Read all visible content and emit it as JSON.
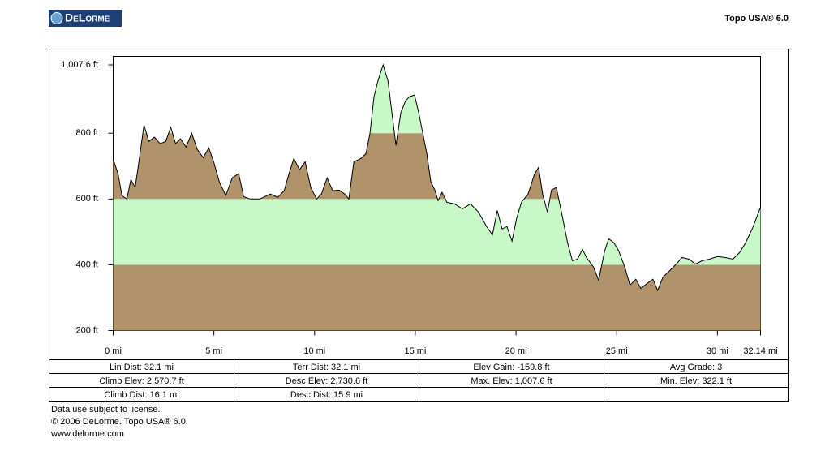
{
  "logo": "DeLorme",
  "app_title": "Topo USA® 6.0",
  "chart_data": {
    "type": "elevation_area",
    "x": [
      0,
      0.24,
      0.44,
      0.68,
      0.88,
      1.09,
      1.25,
      1.53,
      1.77,
      2.05,
      2.33,
      2.61,
      2.86,
      3.1,
      3.34,
      3.62,
      3.9,
      4.18,
      4.47,
      4.75,
      4.99,
      5.27,
      5.59,
      5.91,
      6.23,
      6.48,
      6.8,
      7.28,
      7.8,
      8.17,
      8.49,
      8.73,
      8.97,
      9.25,
      9.53,
      9.81,
      10.1,
      10.34,
      10.62,
      10.9,
      11.22,
      11.5,
      11.7,
      11.95,
      12.3,
      12.55,
      12.75,
      12.95,
      13.15,
      13.4,
      13.64,
      13.84,
      14.04,
      14.28,
      14.52,
      14.72,
      14.96,
      15.17,
      15.37,
      15.57,
      15.77,
      15.97,
      16.13,
      16.33,
      16.57,
      16.94,
      17.34,
      17.74,
      18.14,
      18.54,
      18.83,
      19.07,
      19.31,
      19.55,
      19.8,
      20.03,
      20.27,
      20.6,
      20.92,
      21.12,
      21.32,
      21.56,
      21.76,
      22.0,
      22.28,
      22.56,
      22.8,
      23.05,
      23.3,
      23.5,
      23.85,
      24.1,
      24.4,
      24.6,
      24.86,
      25.1,
      25.4,
      25.66,
      25.95,
      26.2,
      26.5,
      26.8,
      27.03,
      27.3,
      27.6,
      28.0,
      28.24,
      28.6,
      28.9,
      29.24,
      29.6,
      30.0,
      30.4,
      30.77,
      31.1,
      31.4,
      31.74,
      32.14
    ],
    "values": [
      721,
      677,
      610,
      600,
      659,
      635,
      701,
      825,
      775,
      788,
      768,
      775,
      818,
      768,
      783,
      758,
      800,
      750,
      726,
      755,
      713,
      652,
      610,
      664,
      677,
      607,
      600,
      600,
      615,
      605,
      625,
      677,
      723,
      689,
      713,
      635,
      600,
      615,
      664,
      625,
      627,
      615,
      600,
      713,
      723,
      738,
      800,
      911,
      960,
      1007.6,
      960,
      862,
      763,
      862,
      899,
      911,
      916,
      862,
      800,
      738,
      652,
      627,
      595,
      620,
      590,
      585,
      570,
      585,
      560,
      516,
      491,
      565,
      509,
      516,
      472,
      541,
      590,
      615,
      676,
      696,
      615,
      560,
      627,
      635,
      553,
      467,
      412,
      417,
      447,
      422,
      393,
      353,
      442,
      479,
      467,
      442,
      393,
      338,
      356,
      328,
      343,
      356,
      322.1,
      363,
      380,
      405,
      422,
      417,
      402,
      412,
      417,
      425,
      422,
      417,
      437,
      467,
      511,
      575
    ],
    "band_colors": [
      "#b0936a",
      "#c8f7c8"
    ],
    "line_color": "#000000",
    "xlim": [
      0,
      32.14
    ],
    "ylim": [
      200,
      1007.6
    ],
    "xticks": [
      {
        "value": 0,
        "label": "0 mi"
      },
      {
        "value": 5,
        "label": "5 mi"
      },
      {
        "value": 10,
        "label": "10 mi"
      },
      {
        "value": 15,
        "label": "15 mi"
      },
      {
        "value": 20,
        "label": "20 mi"
      },
      {
        "value": 25,
        "label": "25 mi"
      },
      {
        "value": 30,
        "label": "30 mi"
      },
      {
        "value": 32.14,
        "label": "32.14 mi"
      }
    ],
    "yticks": [
      {
        "value": 200,
        "label": "200 ft"
      },
      {
        "value": 400,
        "label": "400 ft"
      },
      {
        "value": 600,
        "label": "600 ft"
      },
      {
        "value": 800,
        "label": "800 ft"
      },
      {
        "value": 1007.6,
        "label": "1,007.6 ft"
      }
    ]
  },
  "stats": [
    [
      "Lin Dist: 32.1 mi",
      "Terr Dist: 32.1 mi",
      "Elev Gain: -159.8 ft",
      "Avg Grade: 3"
    ],
    [
      "Climb Elev: 2,570.7 ft",
      "Desc Elev: 2,730.6 ft",
      "Max. Elev: 1,007.6 ft",
      "Min. Elev: 322.1 ft"
    ],
    [
      "Climb Dist: 16.1 mi",
      "Desc Dist: 15.9 mi"
    ]
  ],
  "footer": [
    "Data use subject to license.",
    "© 2006 DeLorme. Topo USA® 6.0.",
    "www.delorme.com"
  ]
}
